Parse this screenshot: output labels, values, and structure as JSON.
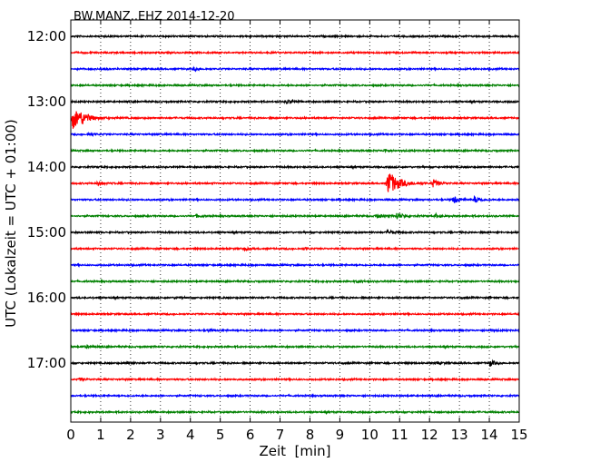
{
  "chart_data": {
    "type": "line",
    "title": "BW.MANZ..EHZ 2014-12-20",
    "xlabel": "Zeit  [min]",
    "ylabel": "UTC (Lokalzeit = UTC + 01:00)",
    "xlim": [
      0,
      15
    ],
    "x_ticks": [
      "0",
      "1",
      "2",
      "3",
      "4",
      "5",
      "6",
      "7",
      "8",
      "9",
      "10",
      "11",
      "12",
      "13",
      "14",
      "15"
    ],
    "y_ticks": [
      "12:00",
      "13:00",
      "14:00",
      "15:00",
      "16:00",
      "17:00"
    ],
    "grid": true,
    "colors": [
      "#000000",
      "#ff0000",
      "#0000ff",
      "#008000"
    ],
    "traces": [
      {
        "start": "12:00",
        "color": "#000000",
        "events": []
      },
      {
        "start": "12:15",
        "color": "#ff0000",
        "events": []
      },
      {
        "start": "12:30",
        "color": "#0000ff",
        "events": [
          {
            "t": 4.1,
            "amp": 0.35
          },
          {
            "t": 1.0,
            "amp": 0.15
          }
        ]
      },
      {
        "start": "12:45",
        "color": "#008000",
        "events": []
      },
      {
        "start": "13:00",
        "color": "#000000",
        "events": [
          {
            "t": 7.2,
            "amp": 0.4
          }
        ]
      },
      {
        "start": "13:15",
        "color": "#ff0000",
        "events": [
          {
            "t": 0.05,
            "amp": 2.5
          },
          {
            "t": 0.35,
            "amp": 0.5
          }
        ]
      },
      {
        "start": "13:30",
        "color": "#0000ff",
        "events": [
          {
            "t": 0.6,
            "amp": 0.25
          }
        ]
      },
      {
        "start": "13:45",
        "color": "#008000",
        "events": [
          {
            "t": 10.5,
            "amp": 0.3
          }
        ]
      },
      {
        "start": "14:00",
        "color": "#000000",
        "events": []
      },
      {
        "start": "14:15",
        "color": "#ff0000",
        "events": [
          {
            "t": 0.9,
            "amp": 0.4
          },
          {
            "t": 10.6,
            "amp": 2.8
          },
          {
            "t": 12.1,
            "amp": 0.9
          }
        ]
      },
      {
        "start": "14:30",
        "color": "#0000ff",
        "events": [
          {
            "t": 12.8,
            "amp": 1.0
          },
          {
            "t": 13.5,
            "amp": 0.7
          }
        ]
      },
      {
        "start": "14:45",
        "color": "#008000",
        "events": [
          {
            "t": 4.2,
            "amp": 0.3
          },
          {
            "t": 10.2,
            "amp": 0.5
          },
          {
            "t": 10.9,
            "amp": 0.8
          },
          {
            "t": 12.2,
            "amp": 0.45
          }
        ]
      },
      {
        "start": "15:00",
        "color": "#000000",
        "events": [
          {
            "t": 10.6,
            "amp": 0.5
          }
        ]
      },
      {
        "start": "15:15",
        "color": "#ff0000",
        "events": [
          {
            "t": 5.8,
            "amp": 0.3
          },
          {
            "t": 7.8,
            "amp": 0.2
          }
        ]
      },
      {
        "start": "15:30",
        "color": "#0000ff",
        "events": []
      },
      {
        "start": "15:45",
        "color": "#008000",
        "events": [
          {
            "t": 9.6,
            "amp": 0.25
          }
        ]
      },
      {
        "start": "16:00",
        "color": "#000000",
        "events": [
          {
            "t": 3.5,
            "amp": 0.2
          }
        ]
      },
      {
        "start": "16:15",
        "color": "#ff0000",
        "events": []
      },
      {
        "start": "16:30",
        "color": "#0000ff",
        "events": [
          {
            "t": 4.6,
            "amp": 0.25
          },
          {
            "t": 14.0,
            "amp": 0.2
          }
        ]
      },
      {
        "start": "16:45",
        "color": "#008000",
        "events": [
          {
            "t": 0.5,
            "amp": 0.3
          }
        ]
      },
      {
        "start": "17:00",
        "color": "#000000",
        "events": [
          {
            "t": 1.8,
            "amp": 0.3
          },
          {
            "t": 12.2,
            "amp": 0.25
          },
          {
            "t": 14.0,
            "amp": 0.7
          }
        ]
      },
      {
        "start": "17:15",
        "color": "#ff0000",
        "events": [
          {
            "t": 0.3,
            "amp": 0.25
          }
        ]
      },
      {
        "start": "17:30",
        "color": "#0000ff",
        "events": []
      },
      {
        "start": "17:45",
        "color": "#008000",
        "events": [
          {
            "t": 2.6,
            "amp": 0.2
          }
        ]
      }
    ]
  }
}
